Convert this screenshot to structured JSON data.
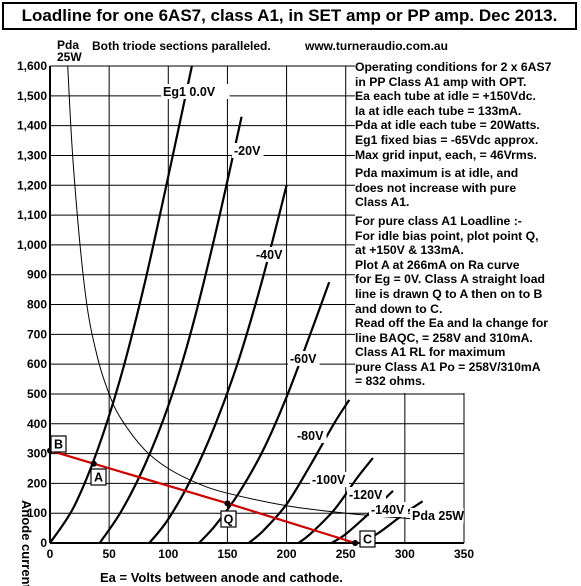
{
  "title": "Loadline for one 6AS7, class A1, in SET amp or PP amp. Dec 2013.",
  "subtitle": "Both triode sections paralleled.",
  "website": "www.turneraudio.com.au",
  "pda_axis_label": [
    "Pda",
    "25W"
  ],
  "notes": [
    [
      "Operating conditions for 2 x 6AS7",
      "in PP Class A1 amp with OPT.",
      "Ea each tube at idle = +150Vdc.",
      "Ia at idle each tube = 133mA.",
      "Pda at idle each tube = 20Watts.",
      "Eg1 fixed bias = -65Vdc approx.",
      "Max grid input, each, = 46Vrms."
    ],
    [
      "Pda maximum is at idle, and",
      "does not increase with pure",
      "Class A1."
    ],
    [
      "For pure class A1 Loadline :-",
      "For idle bias point, plot point Q,",
      "at +150V & 133mA.",
      "Plot A at 266mA on Ra curve",
      "for Eg = 0V. Class A straight load",
      "line is drawn Q to A then on to B",
      "and down to C.",
      "Read off the Ea and Ia change for",
      "line BAQC, = 258V and 310mA.",
      "Class A1 RL for maximum",
      "pure Class A1 Po = 258V/310mA",
      "= 832 ohms."
    ]
  ],
  "chart_data": {
    "type": "line",
    "xlabel": "Ea = Volts between anode and cathode.",
    "ylabel": "Anode current mA",
    "xlim": [
      0,
      350
    ],
    "ylim": [
      0,
      1600
    ],
    "x_ticks": [
      "0",
      "50",
      "100",
      "150",
      "200",
      "250",
      "300",
      "350"
    ],
    "y_ticks": [
      "0",
      "100",
      "200",
      "300",
      "400",
      "500",
      "600",
      "700",
      "800",
      "900",
      "1,000",
      "1,100",
      "1,200",
      "1,300",
      "1,400",
      "1,500",
      "1,600"
    ],
    "grid": true,
    "colors": {
      "curves": "#000000",
      "loadline": "#cc0000",
      "pda": "#000000",
      "axes": "#000000"
    },
    "series": [
      {
        "name": "Eg1  0.0V",
        "values": [
          [
            0,
            0
          ],
          [
            20,
            120
          ],
          [
            40,
            310
          ],
          [
            60,
            560
          ],
          [
            80,
            870
          ],
          [
            100,
            1230
          ],
          [
            120,
            1600
          ]
        ]
      },
      {
        "name": "-20V",
        "values": [
          [
            42,
            0
          ],
          [
            60,
            105
          ],
          [
            80,
            260
          ],
          [
            100,
            460
          ],
          [
            120,
            720
          ],
          [
            140,
            1040
          ],
          [
            162,
            1430
          ]
        ]
      },
      {
        "name": "-40V",
        "values": [
          [
            84,
            0
          ],
          [
            100,
            80
          ],
          [
            120,
            220
          ],
          [
            140,
            400
          ],
          [
            160,
            620
          ],
          [
            180,
            890
          ],
          [
            200,
            1200
          ]
        ]
      },
      {
        "name": "-60V",
        "values": [
          [
            126,
            0
          ],
          [
            140,
            60
          ],
          [
            160,
            170
          ],
          [
            180,
            310
          ],
          [
            200,
            490
          ],
          [
            220,
            700
          ],
          [
            236,
            875
          ]
        ]
      },
      {
        "name": "-80V",
        "values": [
          [
            168,
            0
          ],
          [
            180,
            40
          ],
          [
            200,
            130
          ],
          [
            220,
            260
          ],
          [
            240,
            400
          ],
          [
            253,
            480
          ]
        ]
      },
      {
        "name": "-100V",
        "values": [
          [
            210,
            0
          ],
          [
            220,
            30
          ],
          [
            240,
            110
          ],
          [
            260,
            220
          ],
          [
            273,
            285
          ]
        ]
      },
      {
        "name": "-120V",
        "values": [
          [
            238,
            0
          ],
          [
            250,
            30
          ],
          [
            270,
            100
          ],
          [
            290,
            175
          ]
        ]
      },
      {
        "name": "-140V",
        "values": [
          [
            264,
            0
          ],
          [
            280,
            40
          ],
          [
            300,
            100
          ],
          [
            315,
            140
          ]
        ]
      },
      {
        "name": "Pda 25W",
        "values": [
          [
            15,
            1667
          ],
          [
            20,
            1250
          ],
          [
            30,
            833
          ],
          [
            40,
            625
          ],
          [
            50,
            500
          ],
          [
            60,
            417
          ],
          [
            80,
            313
          ],
          [
            100,
            250
          ],
          [
            125,
            200
          ],
          [
            150,
            167
          ],
          [
            200,
            125
          ],
          [
            250,
            100
          ],
          [
            300,
            83
          ],
          [
            350,
            71
          ]
        ]
      }
    ],
    "loadline": {
      "name": "BAQC",
      "values": [
        [
          0,
          310
        ],
        [
          37,
          266
        ],
        [
          150,
          133
        ],
        [
          258,
          0
        ]
      ]
    },
    "points": [
      {
        "label": "B",
        "x": 0,
        "y": 310
      },
      {
        "label": "A",
        "x": 37,
        "y": 266
      },
      {
        "label": "Q",
        "x": 150,
        "y": 133
      },
      {
        "label": "C",
        "x": 258,
        "y": 0
      }
    ]
  }
}
